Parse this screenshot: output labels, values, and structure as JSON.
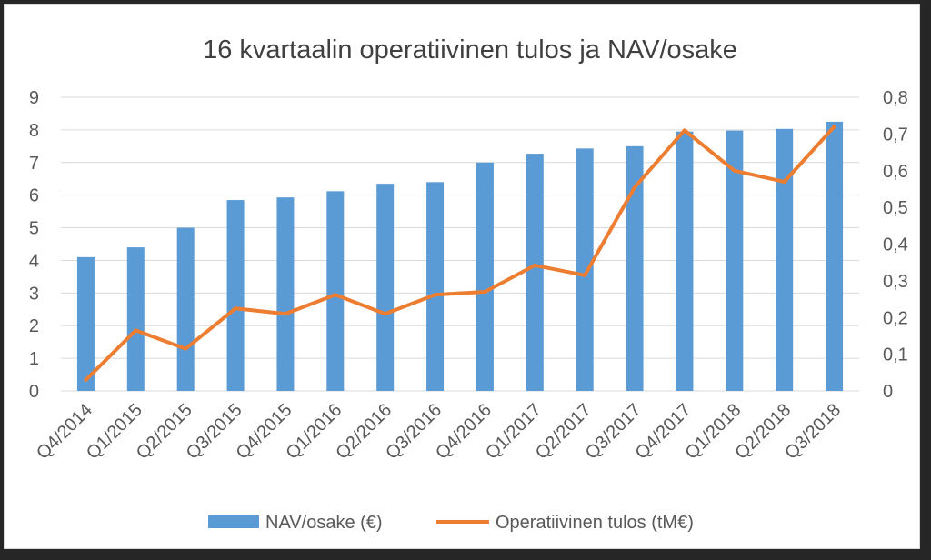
{
  "chart_data": {
    "type": "bar",
    "title": "16 kvartaalin operatiivinen tulos ja NAV/osake",
    "categories": [
      "Q4/2014",
      "Q1/2015",
      "Q2/2015",
      "Q3/2015",
      "Q4/2015",
      "Q1/2016",
      "Q2/2016",
      "Q3/2016",
      "Q4/2016",
      "Q1/2017",
      "Q2/2017",
      "Q3/2017",
      "Q4/2017",
      "Q1/2018",
      "Q2/2018",
      "Q3/2018"
    ],
    "series": [
      {
        "name": "NAV/osake (€)",
        "type": "bar",
        "axis": "left",
        "color": "#5b9bd5",
        "values": [
          4.1,
          4.4,
          5.0,
          5.85,
          5.93,
          6.12,
          6.35,
          6.4,
          7.0,
          7.27,
          7.43,
          7.5,
          7.95,
          7.98,
          8.03,
          8.25
        ]
      },
      {
        "name": "Operatiivinen tulos (tM€)",
        "type": "line",
        "axis": "right",
        "color": "#ed7d31",
        "values": [
          0.03,
          0.165,
          0.115,
          0.225,
          0.21,
          0.262,
          0.21,
          0.262,
          0.27,
          0.342,
          0.315,
          0.555,
          0.71,
          0.6,
          0.57,
          0.72
        ]
      }
    ],
    "y_left": {
      "min": 0,
      "max": 9,
      "ticks": [
        "0",
        "1",
        "2",
        "3",
        "4",
        "5",
        "6",
        "7",
        "8",
        "9"
      ]
    },
    "y_right": {
      "min": 0,
      "max": 0.8,
      "ticks": [
        "0",
        "0,1",
        "0,2",
        "0,3",
        "0,4",
        "0,5",
        "0,6",
        "0,7",
        "0,8"
      ]
    },
    "grid": true,
    "legend": "bottom",
    "colors": {
      "title": "#404040",
      "tick": "#595959",
      "grid": "#d9d9d9"
    }
  }
}
